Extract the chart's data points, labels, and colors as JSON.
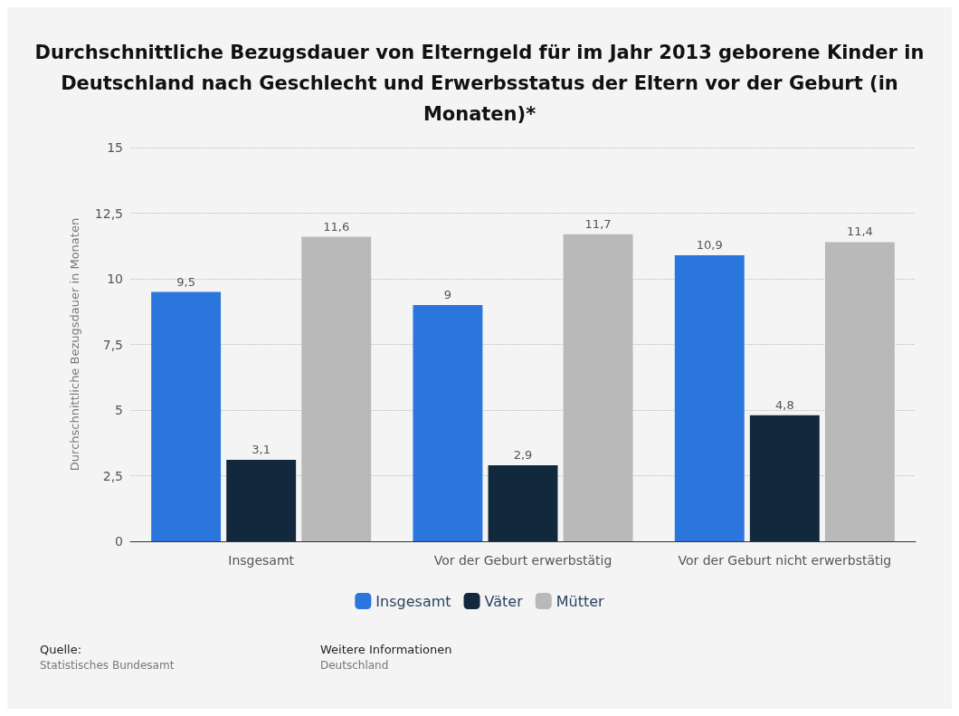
{
  "chart_data": {
    "type": "bar",
    "title": "Durchschnittliche Bezugsdauer von Elterngeld für im Jahr 2013 geborene Kinder in Deutschland nach Geschlecht und Erwerbsstatus der Eltern vor der Geburt (in Monaten)*",
    "ylabel": "Durchschnittliche Bezugsdauer in Monaten",
    "categories": [
      "Insgesamt",
      "Vor der Geburt erwerbstätig",
      "Vor der Geburt nicht erwerbstätig"
    ],
    "series": [
      {
        "name": "Insgesamt",
        "color": "#2a76dd",
        "values": [
          9.5,
          9,
          10.9
        ],
        "value_labels": [
          "9,5",
          "9",
          "10,9"
        ]
      },
      {
        "name": "Väter",
        "color": "#12283d",
        "values": [
          3.1,
          2.9,
          4.8
        ],
        "value_labels": [
          "3,1",
          "2,9",
          "4,8"
        ]
      },
      {
        "name": "Mütter",
        "color": "#b9b9b9",
        "values": [
          11.6,
          11.7,
          11.4
        ],
        "value_labels": [
          "11,6",
          "11,7",
          "11,4"
        ]
      }
    ],
    "ylim": [
      0,
      15
    ],
    "yticks": [
      0,
      {
        "value": 2.5,
        "label": "2,5"
      },
      5,
      {
        "value": 7.5,
        "label": "7,5"
      },
      10,
      {
        "value": 12.5,
        "label": "12,5"
      },
      15
    ],
    "grid": "y",
    "legend": "bottom",
    "annotations": [
      "Quelle:",
      "Statistisches Bundesamt",
      "Weitere Informationen",
      "Deutschland"
    ]
  }
}
